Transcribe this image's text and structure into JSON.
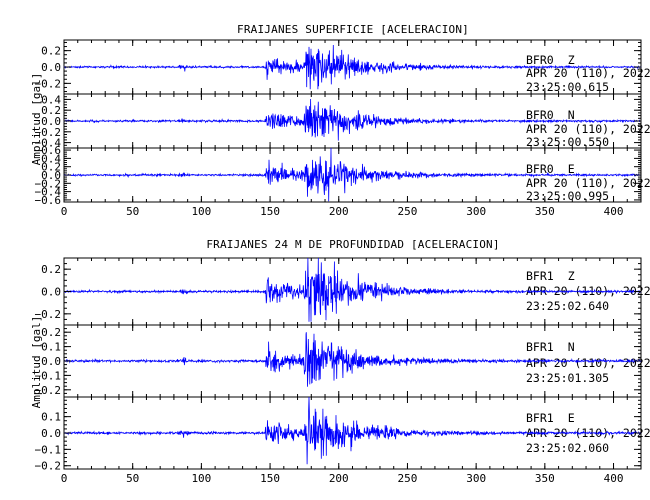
{
  "chart_data": [
    {
      "type": "line",
      "title": "FRAIJANES SUPERFICIE [ACELERACION]",
      "ylabel": "Amplitud [gal]",
      "xlim": [
        0,
        420
      ],
      "x_ticks": [
        0,
        50,
        100,
        150,
        200,
        250,
        300,
        350,
        400
      ],
      "series_color": "#0000ff",
      "channels": [
        {
          "station": "BFR0",
          "component": "Z",
          "date": "APR 20 (110), 2022",
          "time": "23:25:00.615",
          "ylim": [
            -0.33,
            0.33
          ],
          "y_ticks": [
            -0.2,
            0.0,
            0.2
          ],
          "y_tick_labels": [
            "−0.2",
            "0.0",
            "0.2"
          ],
          "noise_amplitude": 0.01,
          "peak_amplitude": 0.28
        },
        {
          "station": "BFR0",
          "component": "N",
          "date": "APR 20 (110), 2022",
          "time": "23:25:00.550",
          "ylim": [
            -0.5,
            0.5
          ],
          "y_ticks": [
            -0.4,
            -0.2,
            0.0,
            0.2,
            0.4
          ],
          "y_tick_labels": [
            "−0.4",
            "−0.2",
            "0.0",
            "0.2",
            "0.4"
          ],
          "noise_amplitude": 0.015,
          "peak_amplitude": 0.45
        },
        {
          "station": "BFR0",
          "component": "E",
          "date": "APR 20 (110), 2022",
          "time": "23:25:00.995",
          "ylim": [
            -0.65,
            0.65
          ],
          "y_ticks": [
            -0.6,
            -0.4,
            -0.2,
            0.0,
            0.2,
            0.4,
            0.6
          ],
          "y_tick_labels": [
            "−0.6",
            "−0.4",
            "−0.2",
            "0.0",
            "0.2",
            "0.4",
            "0.6"
          ],
          "noise_amplitude": 0.02,
          "peak_amplitude": 0.6
        }
      ]
    },
    {
      "type": "line",
      "title": "FRAIJANES 24 M DE PROFUNDIDAD [ACELERACION]",
      "ylabel": "Amplitud [gal]",
      "xlim": [
        0,
        420
      ],
      "x_ticks": [
        0,
        50,
        100,
        150,
        200,
        250,
        300,
        350,
        400
      ],
      "series_color": "#0000ff",
      "channels": [
        {
          "station": "BFR1",
          "component": "Z",
          "date": "APR 20 (110), 2022",
          "time": "23:25:02.640",
          "ylim": [
            -0.3,
            0.3
          ],
          "y_ticks": [
            -0.2,
            0.0,
            0.2
          ],
          "y_tick_labels": [
            "−0.2",
            "0.0",
            "0.2"
          ],
          "noise_amplitude": 0.008,
          "peak_amplitude": 0.3
        },
        {
          "station": "BFR1",
          "component": "N",
          "date": "APR 20 (110), 2022",
          "time": "23:25:01.305",
          "ylim": [
            -0.25,
            0.25
          ],
          "y_ticks": [
            -0.2,
            -0.1,
            0.0,
            0.1,
            0.2
          ],
          "y_tick_labels": [
            "−0.2",
            "−0.1",
            "0.0",
            "0.1",
            "0.2"
          ],
          "noise_amplitude": 0.007,
          "peak_amplitude": 0.2
        },
        {
          "station": "BFR1",
          "component": "E",
          "date": "APR 20 (110), 2022",
          "time": "23:25:02.060",
          "ylim": [
            -0.22,
            0.22
          ],
          "y_ticks": [
            -0.2,
            -0.1,
            0.0,
            0.1
          ],
          "y_tick_labels": [
            "−0.2",
            "−0.1",
            "0.0",
            "0.1"
          ],
          "noise_amplitude": 0.006,
          "peak_amplitude": 0.19
        }
      ]
    }
  ]
}
